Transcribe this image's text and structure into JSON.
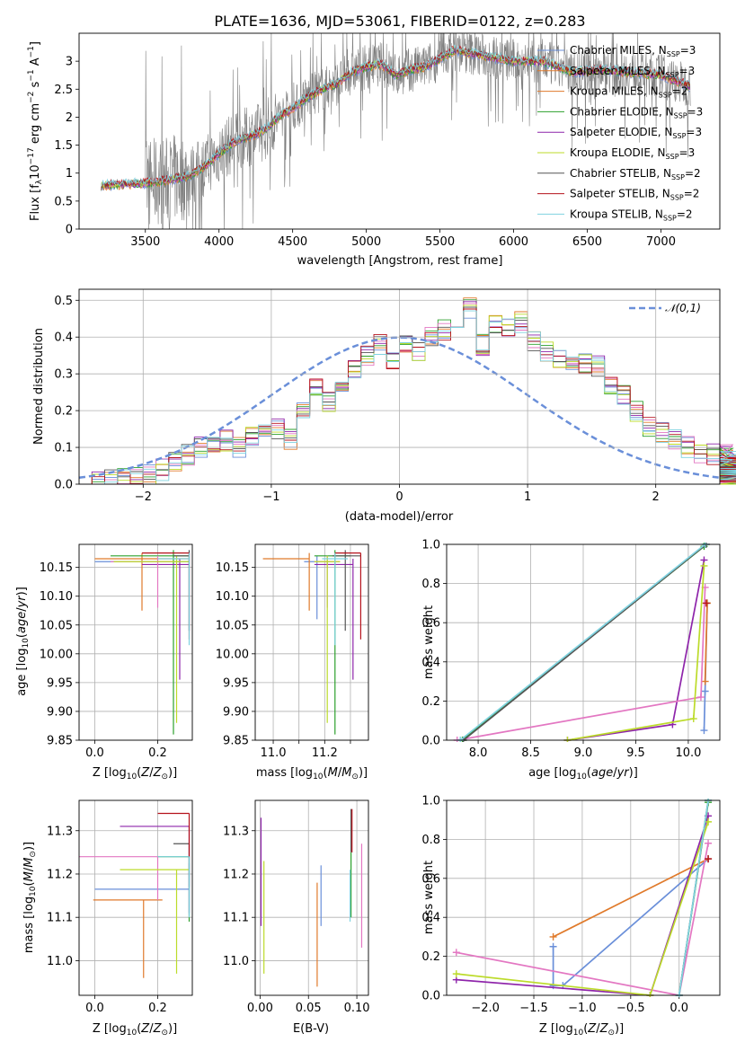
{
  "figure_title": "PLATE=1636, MJD=53061, FIBERID=0122, z=0.283",
  "model_colors": [
    "#6a8fd9",
    "#e07a2b",
    "#2ca02c",
    "#8e24aa",
    "#e377c2",
    "#bcdb2a",
    "#555555",
    "#b5121b",
    "#7fd3e0"
  ],
  "legend_entries": [
    {
      "name": "Chabrier MILES, N",
      "sub": "SSP",
      "tail": "=3",
      "color": "#6a8fd9"
    },
    {
      "name": "Salpeter MILES, N",
      "sub": "SSP",
      "tail": "=3",
      "color": "#e07a2b"
    },
    {
      "name": "Kroupa MILES, N",
      "sub": "SSP",
      "tail": "=2",
      "color": "#e07a2b"
    },
    {
      "name": "Chabrier ELODIE, N",
      "sub": "SSP",
      "tail": "=3",
      "color": "#2ca02c"
    },
    {
      "name": "Salpeter ELODIE, N",
      "sub": "SSP",
      "tail": "=3",
      "color": "#8e24aa"
    },
    {
      "name": "Kroupa ELODIE, N",
      "sub": "SSP",
      "tail": "=3",
      "color": "#bcdb2a"
    },
    {
      "name": "Chabrier STELIB, N",
      "sub": "SSP",
      "tail": "=2",
      "color": "#555555"
    },
    {
      "name": "Salpeter STELIB, N",
      "sub": "SSP",
      "tail": "=2",
      "color": "#b5121b"
    },
    {
      "name": "Kroupa STELIB, N",
      "sub": "SSP",
      "tail": "=2",
      "color": "#7fd3e0"
    }
  ],
  "chart_data": [
    {
      "id": "spectrum",
      "type": "line",
      "title": "PLATE=1636, MJD=53061, FIBERID=0122, z=0.283",
      "xlabel": "wavelength [Angstrom, rest frame]",
      "ylabel": "Flux [f_λ 10^-17 erg cm^-2 s^-1 A^-1]",
      "xlim": [
        3050,
        7400
      ],
      "ylim": [
        0,
        3.5
      ],
      "xticks": [
        3500,
        4000,
        4500,
        5000,
        5500,
        6000,
        6500,
        7000
      ],
      "yticks": [
        0.0,
        0.5,
        1.0,
        1.5,
        2.0,
        2.5,
        3.0
      ],
      "grid": false,
      "legend": "top-right",
      "continuum": {
        "x": [
          3200,
          3500,
          3600,
          3700,
          3800,
          3900,
          4000,
          4100,
          4200,
          4300,
          4400,
          4500,
          4600,
          4700,
          4800,
          4900,
          5000,
          5100,
          5200,
          5300,
          5400,
          5500,
          5600,
          5800,
          6000,
          6200,
          6400,
          6600,
          6800,
          7000,
          7200
        ],
        "y": [
          0.78,
          0.82,
          0.85,
          0.9,
          0.95,
          1.12,
          1.35,
          1.55,
          1.65,
          1.75,
          2.0,
          2.15,
          2.35,
          2.5,
          2.6,
          2.8,
          2.9,
          2.95,
          2.75,
          2.85,
          2.9,
          3.05,
          3.2,
          3.1,
          3.0,
          3.0,
          2.8,
          2.85,
          2.8,
          2.75,
          2.55
        ]
      },
      "data_start": 3500
    },
    {
      "id": "residuals",
      "type": "histogram",
      "xlabel": "(data-model)/error",
      "ylabel": "Normed distribution",
      "xlim": [
        -2.5,
        2.5
      ],
      "ylim": [
        0,
        0.53
      ],
      "xticks": [
        -2,
        -1,
        0,
        1,
        2
      ],
      "yticks": [
        0.0,
        0.1,
        0.2,
        0.3,
        0.4,
        0.5
      ],
      "grid": true,
      "legend": "top-right",
      "reference_curve": "𝒩(0,1)",
      "bin_width": 0.1,
      "bins_start": -2.5,
      "base_values": [
        0.0,
        0.005,
        0.01,
        0.015,
        0.02,
        0.03,
        0.04,
        0.06,
        0.08,
        0.1,
        0.1,
        0.12,
        0.1,
        0.13,
        0.14,
        0.15,
        0.12,
        0.2,
        0.26,
        0.22,
        0.27,
        0.31,
        0.35,
        0.38,
        0.33,
        0.38,
        0.36,
        0.4,
        0.42,
        0.45,
        0.48,
        0.38,
        0.44,
        0.42,
        0.44,
        0.39,
        0.36,
        0.34,
        0.32,
        0.33,
        0.32,
        0.27,
        0.24,
        0.2,
        0.16,
        0.14,
        0.12,
        0.1,
        0.08,
        0.08,
        0.08,
        0.08,
        0.06,
        0.05,
        0.04,
        0.03,
        0.025,
        0.025,
        0.02,
        0.02,
        0.02
      ]
    },
    {
      "id": "age-vs-Z",
      "type": "errorbar",
      "xlabel": "Z [log10(Z/Z⊙)]",
      "ylabel": "age [log10(age/yr)]",
      "xlim": [
        -0.05,
        0.31
      ],
      "ylim": [
        9.85,
        10.19
      ],
      "xticks": [
        0.0,
        0.2
      ],
      "xticklabels": [
        "0.0",
        "0.2"
      ],
      "yticks": [
        9.85,
        9.9,
        9.95,
        10.0,
        10.05,
        10.1,
        10.15
      ],
      "yticklabels": [
        "9.85",
        "9.90",
        "9.95",
        "10.00",
        "10.05",
        "10.10",
        "10.15"
      ],
      "grid": true,
      "points": [
        {
          "x": 0.3,
          "y": 10.16,
          "xlo": 0.3,
          "xhi": 0.0,
          "ylo": 0.12,
          "yhi": 0.02
        },
        {
          "x": 0.15,
          "y": 10.165,
          "xlo": 0.15,
          "xhi": 0.15,
          "ylo": 0.09,
          "yhi": 0.01
        },
        {
          "x": 0.25,
          "y": 10.17,
          "xlo": 0.2,
          "xhi": 0.05,
          "ylo": 0.31,
          "yhi": 0.01
        },
        {
          "x": 0.27,
          "y": 10.155,
          "xlo": 0.12,
          "xhi": 0.03,
          "ylo": 0.2,
          "yhi": 0.01
        },
        {
          "x": 0.2,
          "y": 10.16,
          "xlo": 0.15,
          "xhi": 0.05,
          "ylo": 0.08,
          "yhi": 0.01
        },
        {
          "x": 0.26,
          "y": 10.16,
          "xlo": 0.2,
          "xhi": 0.04,
          "ylo": 0.28,
          "yhi": 0.01
        },
        {
          "x": 0.3,
          "y": 10.17,
          "xlo": 0.05,
          "xhi": 0.0,
          "ylo": 0.13,
          "yhi": 0.01
        },
        {
          "x": 0.3,
          "y": 10.175,
          "xlo": 0.15,
          "xhi": 0.0,
          "ylo": 0.15,
          "yhi": 0.0
        },
        {
          "x": 0.3,
          "y": 10.165,
          "xlo": 0.1,
          "xhi": 0.0,
          "ylo": 0.15,
          "yhi": 0.01
        }
      ]
    },
    {
      "id": "age-vs-mass",
      "type": "errorbar",
      "xlabel": "mass [log10(M/M⊙)]",
      "ylabel": "",
      "xlim": [
        10.93,
        11.37
      ],
      "ylim": [
        9.85,
        10.19
      ],
      "xticks": [
        11.0,
        11.1,
        11.2,
        11.3
      ],
      "xticklabels": [
        "11.0",
        "",
        "11.2",
        ""
      ],
      "yticks": [
        9.85,
        9.9,
        9.95,
        10.0,
        10.05,
        10.1,
        10.15
      ],
      "yticklabels": [
        "9.85",
        "9.90",
        "9.95",
        "10.00",
        "10.05",
        "10.10",
        "10.15"
      ],
      "grid": true,
      "points": [
        {
          "x": 11.17,
          "y": 10.16,
          "xlo": 0.05,
          "xhi": 0.05,
          "ylo": 0.1,
          "yhi": 0.01
        },
        {
          "x": 11.14,
          "y": 10.165,
          "xlo": 0.18,
          "xhi": 0.0,
          "ylo": 0.09,
          "yhi": 0.01
        },
        {
          "x": 11.24,
          "y": 10.17,
          "xlo": 0.08,
          "xhi": 0.06,
          "ylo": 0.31,
          "yhi": 0.01
        },
        {
          "x": 11.31,
          "y": 10.155,
          "xlo": 0.15,
          "xhi": 0.0,
          "ylo": 0.2,
          "yhi": 0.01
        },
        {
          "x": 11.21,
          "y": 10.16,
          "xlo": 0.05,
          "xhi": 0.05,
          "ylo": 0.08,
          "yhi": 0.01
        },
        {
          "x": 11.21,
          "y": 10.16,
          "xlo": 0.05,
          "xhi": 0.05,
          "ylo": 0.28,
          "yhi": 0.01
        },
        {
          "x": 11.28,
          "y": 10.17,
          "xlo": 0.05,
          "xhi": 0.06,
          "ylo": 0.13,
          "yhi": 0.01
        },
        {
          "x": 11.34,
          "y": 10.175,
          "xlo": 0.1,
          "xhi": 0.0,
          "ylo": 0.15,
          "yhi": 0.0
        },
        {
          "x": 11.24,
          "y": 10.165,
          "xlo": 0.05,
          "xhi": 0.05,
          "ylo": 0.15,
          "yhi": 0.01
        }
      ]
    },
    {
      "id": "massweight-vs-age",
      "type": "line",
      "xlabel": "age [log10(age/yr)]",
      "ylabel": "mass weight",
      "xlim": [
        7.7,
        10.3
      ],
      "ylim": [
        0,
        1
      ],
      "xticks": [
        8.0,
        8.5,
        9.0,
        9.5,
        10.0
      ],
      "xticklabels": [
        "8.0",
        "8.5",
        "9.0",
        "9.5",
        "10.0"
      ],
      "yticks": [
        0,
        0.2,
        0.4,
        0.6,
        0.8,
        1.0
      ],
      "yticklabels": [
        "0.0",
        "0.2",
        "0.4",
        "0.6",
        "0.8",
        "1.0"
      ],
      "grid": true,
      "series": [
        {
          "x": [
            10.15,
            10.16,
            10.18
          ],
          "y": [
            0.05,
            0.25,
            0.7
          ]
        },
        {
          "x": [
            10.16,
            10.18
          ],
          "y": [
            0.3,
            0.7
          ]
        },
        {
          "x": [
            7.85,
            10.15
          ],
          "y": [
            0.0,
            0.99
          ]
        },
        {
          "x": [
            8.85,
            9.85,
            10.15
          ],
          "y": [
            0.0,
            0.08,
            0.92
          ]
        },
        {
          "x": [
            7.8,
            10.12,
            10.16
          ],
          "y": [
            0.0,
            0.22,
            0.78
          ]
        },
        {
          "x": [
            8.85,
            10.05,
            10.15
          ],
          "y": [
            0.0,
            0.11,
            0.89
          ]
        },
        {
          "x": [
            7.86,
            10.17
          ],
          "y": [
            0.0,
            1.0
          ]
        },
        {
          "x": [
            10.17
          ],
          "y": [
            0.7
          ]
        },
        {
          "x": [
            7.83,
            10.16
          ],
          "y": [
            0.0,
            1.0
          ]
        }
      ]
    },
    {
      "id": "mass-vs-Z",
      "type": "errorbar",
      "xlabel": "Z [log10(Z/Z⊙)]",
      "ylabel": "mass [log10(M/M⊙)]",
      "xlim": [
        -0.05,
        0.31
      ],
      "ylim": [
        10.92,
        11.37
      ],
      "xticks": [
        0.0,
        0.2
      ],
      "xticklabels": [
        "0.0",
        "0.2"
      ],
      "yticks": [
        11.0,
        11.1,
        11.2,
        11.3
      ],
      "yticklabels": [
        "11.0",
        "11.1",
        "11.2",
        "11.3"
      ],
      "grid": true,
      "points": [
        {
          "x": 0.3,
          "y": 11.165,
          "xlo": 0.3,
          "xhi": 0.0,
          "ylo": 0.06,
          "yhi": 0.06
        },
        {
          "x": 0.155,
          "y": 11.14,
          "xlo": 0.16,
          "xhi": 0.06,
          "ylo": 0.18,
          "yhi": 0.0
        },
        {
          "x": 0.3,
          "y": 11.24,
          "xlo": 0.1,
          "xhi": 0.0,
          "ylo": 0.15,
          "yhi": 0.0
        },
        {
          "x": 0.3,
          "y": 11.31,
          "xlo": 0.22,
          "xhi": 0.0,
          "ylo": 0.2,
          "yhi": 0.0
        },
        {
          "x": 0.2,
          "y": 11.24,
          "xlo": 0.3,
          "xhi": 0.0,
          "ylo": 0.1,
          "yhi": 0.0
        },
        {
          "x": 0.26,
          "y": 11.21,
          "xlo": 0.18,
          "xhi": 0.04,
          "ylo": 0.24,
          "yhi": 0.0
        },
        {
          "x": 0.3,
          "y": 11.27,
          "xlo": 0.05,
          "xhi": 0.0,
          "ylo": 0.1,
          "yhi": 0.0
        },
        {
          "x": 0.3,
          "y": 11.34,
          "xlo": 0.1,
          "xhi": 0.0,
          "ylo": 0.1,
          "yhi": 0.0
        },
        {
          "x": 0.3,
          "y": 11.24,
          "xlo": 0.1,
          "xhi": 0.0,
          "ylo": 0.14,
          "yhi": 0.0
        }
      ]
    },
    {
      "id": "mass-vs-ebv",
      "type": "errorbar",
      "xlabel": "E(B-V)",
      "ylabel": "",
      "xlim": [
        -0.005,
        0.112
      ],
      "ylim": [
        10.92,
        11.37
      ],
      "xticks": [
        0.0,
        0.05,
        0.1
      ],
      "xticklabels": [
        "0.00",
        "0.05",
        "0.10"
      ],
      "yticks": [
        11.0,
        11.1,
        11.2,
        11.3
      ],
      "yticklabels": [
        "11.0",
        "11.1",
        "11.2",
        "11.3"
      ],
      "grid": true,
      "points": [
        {
          "x": 0.063,
          "y": 11.14,
          "xlo": 0,
          "xhi": 0,
          "ylo": 0.06,
          "yhi": 0.08
        },
        {
          "x": 0.059,
          "y": 11.08,
          "xlo": 0,
          "xhi": 0,
          "ylo": 0.14,
          "yhi": 0.1
        },
        {
          "x": 0.094,
          "y": 11.2,
          "xlo": 0,
          "xhi": 0,
          "ylo": 0.1,
          "yhi": 0.05
        },
        {
          "x": 0.001,
          "y": 11.25,
          "xlo": 0,
          "xhi": 0,
          "ylo": 0.17,
          "yhi": 0.08
        },
        {
          "x": 0.105,
          "y": 11.15,
          "xlo": 0,
          "xhi": 0,
          "ylo": 0.12,
          "yhi": 0.12
        },
        {
          "x": 0.004,
          "y": 11.1,
          "xlo": 0,
          "xhi": 0,
          "ylo": 0.13,
          "yhi": 0.13
        },
        {
          "x": 0.094,
          "y": 11.3,
          "xlo": 0,
          "xhi": 0,
          "ylo": 0.05,
          "yhi": 0.05
        },
        {
          "x": 0.095,
          "y": 11.3,
          "xlo": 0,
          "xhi": 0,
          "ylo": 0.05,
          "yhi": 0.05
        },
        {
          "x": 0.093,
          "y": 11.17,
          "xlo": 0,
          "xhi": 0,
          "ylo": 0.08,
          "yhi": 0.04
        }
      ]
    },
    {
      "id": "massweight-vs-Z",
      "type": "line",
      "xlabel": "Z [log10(Z/Z⊙)]",
      "ylabel": "mass weight",
      "xlim": [
        -2.4,
        0.42
      ],
      "ylim": [
        0,
        1
      ],
      "xticks": [
        -2.0,
        -1.5,
        -1.0,
        -0.5,
        0.0
      ],
      "xticklabels": [
        "−2.0",
        "−1.5",
        "−1.0",
        "−0.5",
        "0.0"
      ],
      "yticks": [
        0,
        0.2,
        0.4,
        0.6,
        0.8,
        1.0
      ],
      "yticklabels": [
        "0.0",
        "0.2",
        "0.4",
        "0.6",
        "0.8",
        "1.0"
      ],
      "grid": true,
      "series": [
        {
          "x": [
            -1.3,
            -1.3,
            -1.2,
            0.3
          ],
          "y": [
            0.25,
            0.05,
            0.05,
            0.7
          ]
        },
        {
          "x": [
            -1.3,
            0.3
          ],
          "y": [
            0.3,
            0.7
          ]
        },
        {
          "x": [
            0.0,
            0.3
          ],
          "y": [
            0.0,
            0.99
          ]
        },
        {
          "x": [
            -2.3,
            -0.3,
            0.3
          ],
          "y": [
            0.08,
            0.0,
            0.92
          ]
        },
        {
          "x": [
            -2.3,
            0.0,
            0.3
          ],
          "y": [
            0.22,
            0.0,
            0.78
          ]
        },
        {
          "x": [
            -2.3,
            -0.3,
            0.3
          ],
          "y": [
            0.11,
            0.0,
            0.89
          ]
        },
        {
          "x": [
            0.0,
            0.3
          ],
          "y": [
            0.0,
            1.0
          ]
        },
        {
          "x": [
            0.3
          ],
          "y": [
            0.7
          ]
        },
        {
          "x": [
            0.0,
            0.3
          ],
          "y": [
            0.0,
            1.0
          ]
        }
      ]
    }
  ]
}
